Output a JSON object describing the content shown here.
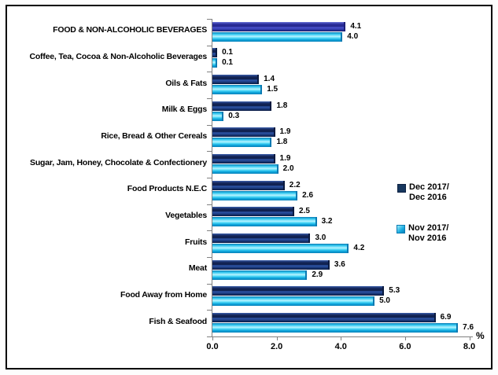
{
  "chart_data": {
    "type": "bar",
    "orientation": "horizontal",
    "title": "",
    "xlabel": "%",
    "xlim": [
      0,
      8
    ],
    "xticks": [
      0.0,
      2.0,
      4.0,
      6.0,
      8.0
    ],
    "xtick_labels": [
      "0.0",
      "2.0",
      "4.0",
      "6.0",
      "8.0"
    ],
    "grid": false,
    "legend_position": "right",
    "categories": [
      "FOOD & NON-ALCOHOLIC BEVERAGES",
      "Coffee, Tea, Cocoa & Non-Alcoholic Beverages",
      "Oils & Fats",
      "Milk & Eggs",
      "Rice, Bread & Other Cereals",
      "Sugar, Jam, Honey, Chocolate & Confectionery",
      "Food Products N.E.C",
      "Vegetables",
      "Fruits",
      "Meat",
      "Food Away from Home",
      "Fish & Seafood"
    ],
    "series": [
      {
        "name": "Dec 2017/Dec 2016",
        "legend_line1": "Dec 2017/",
        "legend_line2": "Dec 2016",
        "color": "#17375E",
        "values": [
          4.1,
          0.1,
          1.4,
          1.8,
          1.9,
          1.9,
          2.2,
          2.5,
          3.0,
          3.6,
          5.3,
          6.9
        ],
        "labels": [
          "4.1",
          "0.1",
          "1.4",
          "1.8",
          "1.9",
          "1.9",
          "2.2",
          "2.5",
          "3.0",
          "3.6",
          "5.3",
          "6.9"
        ]
      },
      {
        "name": "Nov 2017/Nov 2016",
        "legend_line1": "Nov 2017/",
        "legend_line2": "Nov 2016",
        "color": "#00AEEF",
        "values": [
          4.0,
          0.1,
          1.5,
          0.3,
          1.8,
          2.0,
          2.6,
          3.2,
          4.2,
          2.9,
          5.0,
          7.6
        ],
        "labels": [
          "4.0",
          "0.1",
          "1.5",
          "0.3",
          "1.8",
          "2.0",
          "2.6",
          "3.2",
          "4.2",
          "2.9",
          "5.0",
          "7.6"
        ]
      }
    ],
    "highlight_category_index": 0,
    "highlight_color": "#3333B8",
    "axis_color": "#808080",
    "text_color": "#000000"
  }
}
